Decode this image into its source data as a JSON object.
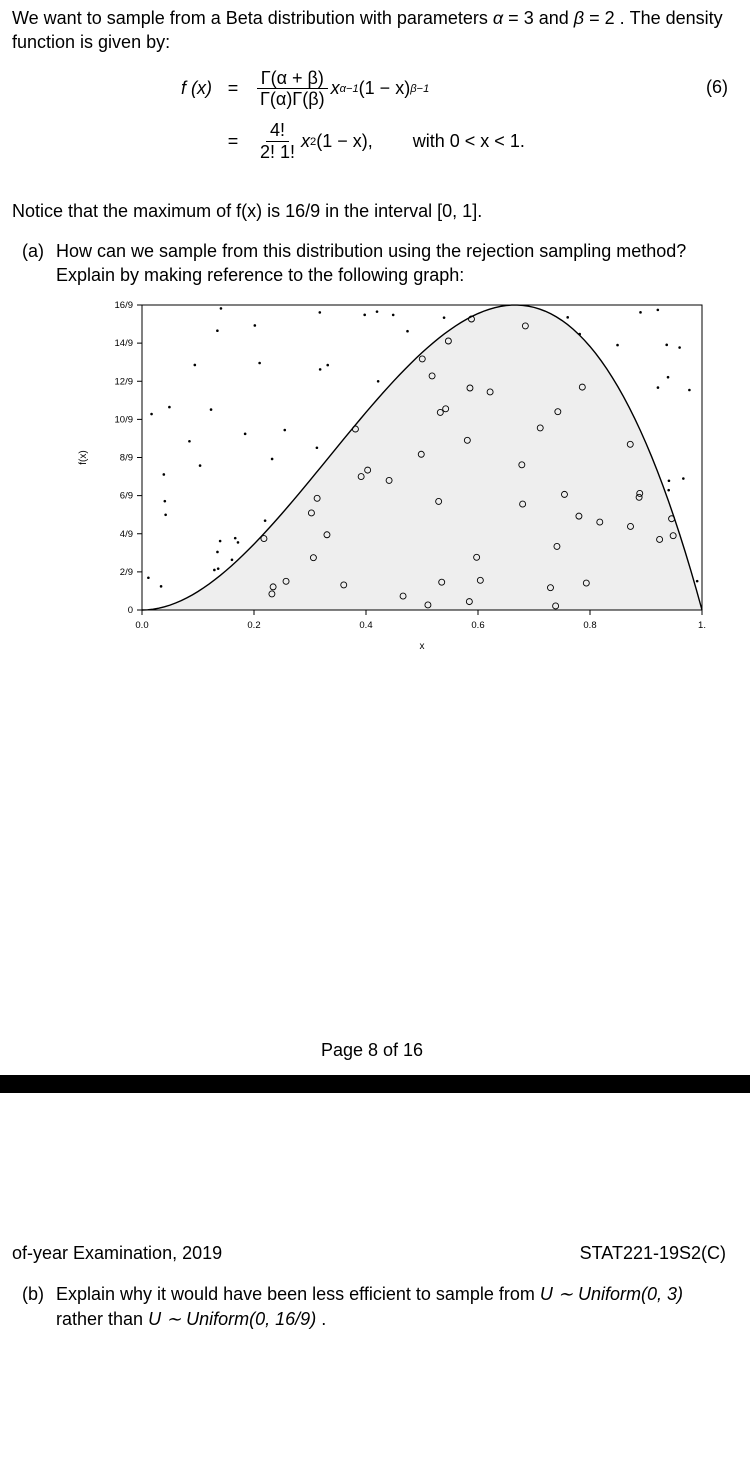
{
  "intro": {
    "text_prefix": "We want to sample from a Beta distribution with parameters ",
    "alpha_sym": "α",
    "alpha_val": "3",
    "beta_sym": "β",
    "beta_val": "2",
    "text_suffix": ".  The density function is given by:"
  },
  "eq": {
    "lhs": "f (x)",
    "eq": "=",
    "num": "(6)",
    "line1": {
      "frac_num": "Γ(α + β)",
      "frac_den": "Γ(α)Γ(β)",
      "tail_base1": "x",
      "tail_exp1": "α−1",
      "tail_mid": "(1 − x)",
      "tail_exp2": "β−1"
    },
    "line2": {
      "frac_num": "4!",
      "frac_den": "2! 1!",
      "body": "x",
      "body_exp": "2",
      "paren": "(1 − x),",
      "cond": "with 0 < x < 1."
    }
  },
  "notice": "Notice that the maximum of f(x) is 16/9 in the interval [0, 1].",
  "qa": {
    "label": "(a)",
    "text": "How can we sample from this distribution using the rejection sampling method? Explain by making reference to the following graph:"
  },
  "chart": {
    "type": "scatter+curve",
    "background_color": "#ffffff",
    "fill_under_curve": "#eeeeee",
    "curve_color": "#000000",
    "axis_color": "#000000",
    "tick_color": "#000000",
    "xlabel": "x",
    "ylabel": "f(x)",
    "xlim": [
      0.0,
      1.0
    ],
    "xtick_vals": [
      0.0,
      0.2,
      0.4,
      0.6,
      0.8,
      1.0
    ],
    "xtick_labels": [
      "0.0",
      "0.2",
      "0.4",
      "0.6",
      "0.8",
      "1."
    ],
    "ylim_frac_denom": 9,
    "ylim": [
      0,
      1.7778
    ],
    "ytick_frac_labels": [
      "0",
      "2/9",
      "4/9",
      "6/9",
      "8/9",
      "10/9",
      "12/9",
      "14/9",
      "16/9"
    ],
    "ytick_vals": [
      0,
      0.2222,
      0.4444,
      0.6667,
      0.8889,
      1.1111,
      1.3333,
      1.5556,
      1.7778
    ],
    "accept_marker": {
      "shape": "circle",
      "fill": "none",
      "stroke": "#000000",
      "r": 3.0,
      "sw": 0.9
    },
    "reject_marker": {
      "shape": "dot",
      "fill": "#000000",
      "r": 1.3
    },
    "curve_n": 100
  },
  "pagenum": {
    "prefix": "Page ",
    "page": "8",
    "of": " of ",
    "total": "16"
  },
  "footer": {
    "left": "of-year Examination, 2019",
    "right": "STAT221-19S2(C)"
  },
  "qb": {
    "label": "(b)",
    "prefix": "Explain why it would have been less efficient to sample from ",
    "u1": "U ∼ Uniform(0, 3)",
    "mid": " rather than ",
    "u2": "U ∼ Uniform(0, 16/9)",
    "suffix": "."
  }
}
